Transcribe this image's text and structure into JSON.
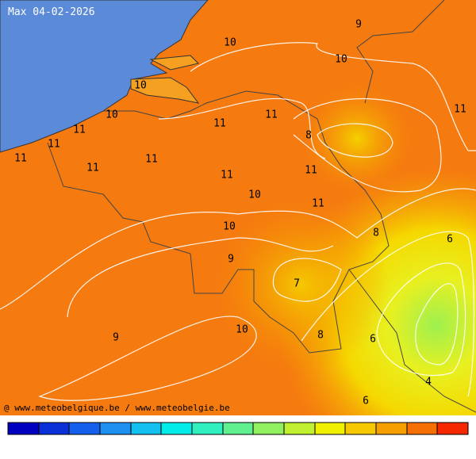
{
  "header": {
    "title": "Max 04-02-2026"
  },
  "labels": [
    9,
    10,
    10,
    10,
    11,
    10,
    11,
    11,
    8,
    11,
    11,
    11,
    11,
    11,
    11,
    11,
    10,
    11,
    10,
    8,
    6,
    9,
    7,
    10,
    9,
    8,
    6,
    4,
    6
  ],
  "credit": "@ www.meteobelgique.be / www.meteobelgie.be"
}
